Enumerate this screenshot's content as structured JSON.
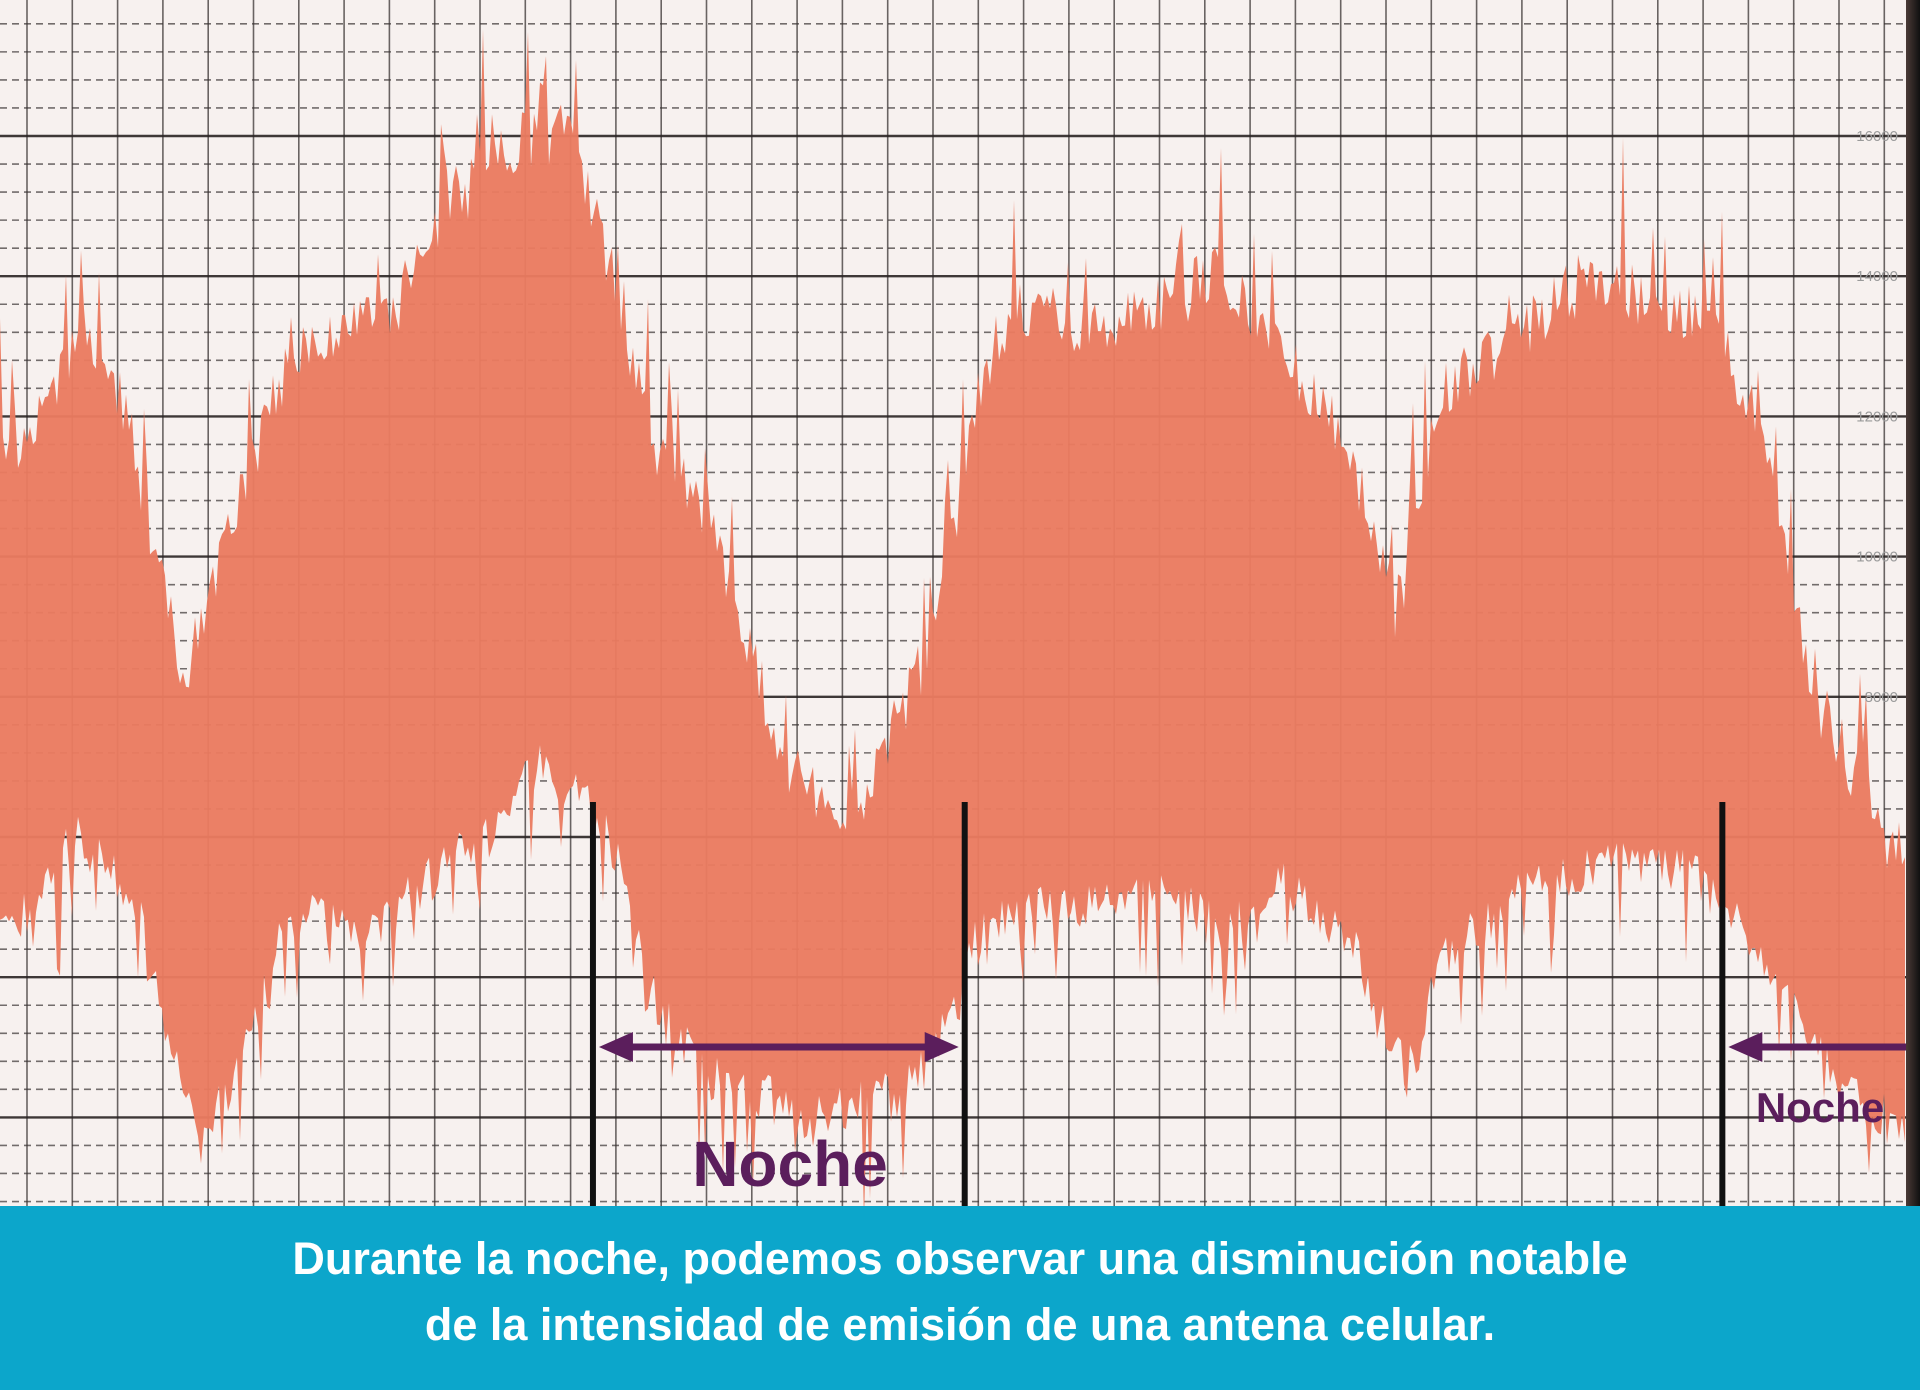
{
  "chart_data": {
    "type": "area",
    "title": "",
    "xlabel": "",
    "ylabel": "",
    "ylim": [
      0,
      17000
    ],
    "y_tick_labels": [
      "16000",
      "14000",
      "12000",
      "10000",
      "8000"
    ],
    "y_ticks": [
      16000,
      14000,
      12000,
      10000,
      8000
    ],
    "grid": true,
    "x_units": "hours",
    "series": [
      {
        "role": "upper-envelope",
        "x": [
          0.3,
          1.8,
          2.6,
          3.9,
          5.2,
          6.2,
          8.3,
          10.4,
          12.0,
          13.0,
          13.8,
          15.1,
          16.7,
          18.2,
          19.8,
          20.8,
          21.6,
          23.4,
          26.0,
          28.6,
          29.7,
          30.7,
          33.8,
          36.4,
          37.5,
          38.5,
          39.6,
          40.6
        ],
        "y": [
          12000,
          13570,
          12700,
          8680,
          11480,
          13400,
          13920,
          16190,
          16540,
          14450,
          12170,
          10950,
          7460,
          6760,
          9200,
          12700,
          13920,
          13750,
          14450,
          12170,
          9550,
          12870,
          14450,
          13750,
          11830,
          8500,
          7110,
          5710
        ]
      },
      {
        "role": "lower-envelope",
        "x": [
          0.3,
          1.6,
          2.9,
          4.2,
          5.2,
          6.2,
          7.8,
          10.4,
          11.5,
          13.0,
          13.8,
          15.1,
          17.2,
          19.3,
          20.3,
          20.8,
          22.1,
          24.7,
          26.0,
          27.3,
          28.6,
          29.9,
          30.7,
          32.5,
          35.1,
          36.4,
          37.5,
          39.0,
          40.6
        ],
        "y": [
          4310,
          5710,
          4660,
          1170,
          2570,
          4660,
          4310,
          5710,
          6760,
          5710,
          3440,
          2220,
          1690,
          2040,
          3090,
          4310,
          4660,
          4840,
          4310,
          5010,
          4310,
          2220,
          3960,
          5010,
          5360,
          5010,
          3960,
          2220,
          1340
        ]
      }
    ],
    "night_markers": [
      12.6,
      20.5,
      36.6
    ],
    "annotations": [
      {
        "text": "Noche",
        "from": 12.6,
        "to": 20.5
      },
      {
        "text": "Noche",
        "from": 36.6,
        "to": 40.8
      }
    ],
    "colors": {
      "signal": "#ea7b60",
      "grid": "#2a2a2a",
      "annotation": "#5b1e5c",
      "background": "#f7f1ef"
    }
  },
  "caption": {
    "line1": "Durante la noche, podemos observar una disminución notable",
    "line2": "de la intensidad de emisión de una antena celular.",
    "background": "#0ca6cb"
  }
}
